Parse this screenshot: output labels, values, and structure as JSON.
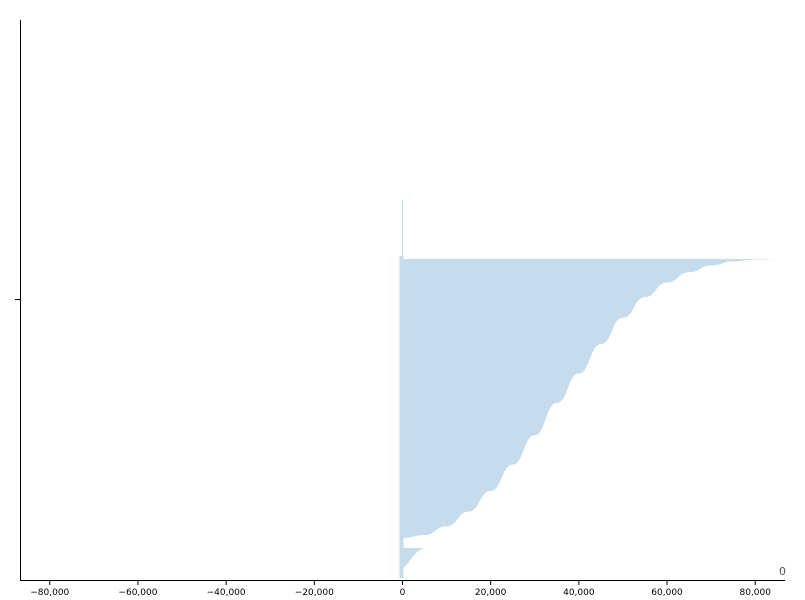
{
  "chart_data": {
    "type": "area",
    "title": "",
    "xlabel": "",
    "ylabel": "",
    "xlim": [
      -86750,
      86750
    ],
    "x_ticks": [
      -80000,
      -60000,
      -40000,
      -20000,
      0,
      20000,
      40000,
      60000,
      80000
    ],
    "x_tick_labels": [
      "−80,000",
      "−60,000",
      "−40,000",
      "−20,000",
      "0",
      "20,000",
      "40,000",
      "60,000",
      "80,000"
    ],
    "y_ticks": 1,
    "corner_label": "0",
    "series": [
      {
        "shape": "right half of a symmetric bell-shaped density, mirrored",
        "x": [
          0,
          5000,
          10000,
          15000,
          20000,
          25000,
          30000,
          35000,
          40000,
          45000,
          50000,
          55000,
          60000,
          65000,
          70000,
          75000,
          80000,
          86000
        ],
        "width_fraction": [
          0.95,
          0.94,
          0.91,
          0.86,
          0.79,
          0.7,
          0.6,
          0.49,
          0.39,
          0.29,
          0.2,
          0.13,
          0.08,
          0.045,
          0.022,
          0.008,
          0.002,
          0.0
        ]
      }
    ],
    "small_shapes": [
      {
        "x": [
          0,
          4000
        ],
        "width_fraction": [
          0.06,
          0.0
        ]
      }
    ],
    "grid": false,
    "legend": "none",
    "colors": {
      "fill": "#c6dcec",
      "axis": "#000000",
      "corner_text": "#555555"
    }
  }
}
